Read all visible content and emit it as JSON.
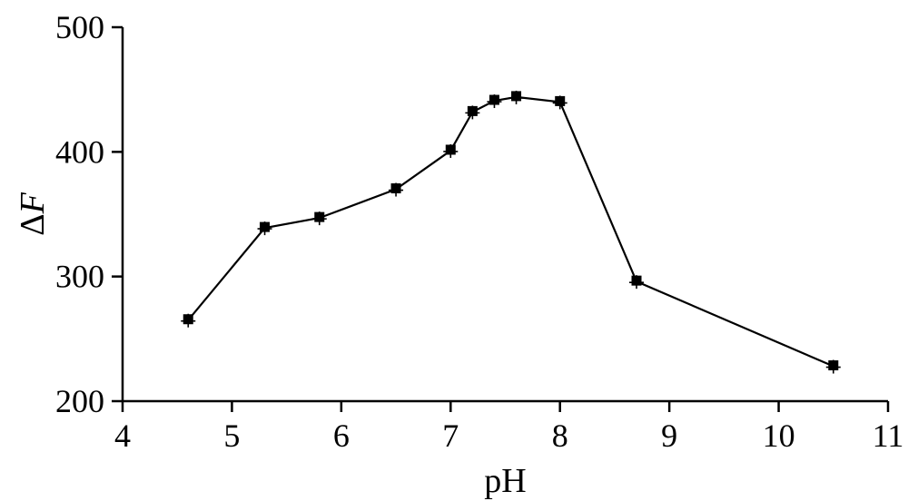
{
  "chart_data": {
    "type": "line",
    "title": "",
    "xlabel": "pH",
    "ylabel_delta": "Δ",
    "ylabel_var": "F",
    "xlim": [
      4,
      11
    ],
    "ylim": [
      200,
      500
    ],
    "xticks": [
      4,
      5,
      6,
      7,
      8,
      9,
      10,
      11
    ],
    "yticks": [
      200,
      300,
      400,
      500
    ],
    "grid": false,
    "marker": "square",
    "series": [
      {
        "x": [
          4.6,
          5.3,
          5.8,
          6.5,
          7.0,
          7.2,
          7.4,
          7.6,
          8.0,
          8.7,
          10.5
        ],
        "y": [
          265,
          339,
          347,
          370,
          401,
          432,
          441,
          444,
          440,
          296,
          228
        ]
      }
    ]
  }
}
